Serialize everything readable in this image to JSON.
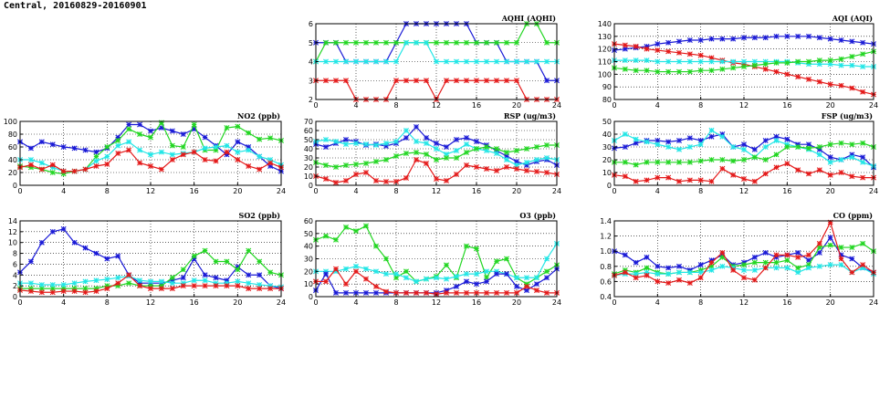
{
  "page": {
    "title": "Central, 20160829-20160901"
  },
  "colors": {
    "blue": "#1a1ad6",
    "red": "#e41a1a",
    "green": "#22d622",
    "cyan": "#22e6e6",
    "grid": "#000000"
  },
  "chart_data": [
    {
      "id": "aqhi",
      "type": "line",
      "title": "AQHI (AQHI)",
      "xlim": [
        0,
        24
      ],
      "xticks": [
        0,
        4,
        8,
        12,
        16,
        20,
        24
      ],
      "ylim": [
        2,
        6
      ],
      "yticks": [
        2,
        3,
        4,
        5,
        6
      ],
      "series": [
        {
          "color": "blue",
          "values": [
            5,
            5,
            5,
            4,
            4,
            4,
            4,
            4,
            5,
            6,
            6,
            6,
            6,
            6,
            6,
            6,
            5,
            5,
            5,
            4,
            4,
            4,
            4,
            3,
            3
          ]
        },
        {
          "color": "green",
          "values": [
            4,
            5,
            5,
            5,
            5,
            5,
            5,
            5,
            5,
            5,
            5,
            5,
            5,
            5,
            5,
            5,
            5,
            5,
            5,
            5,
            5,
            6,
            6,
            5,
            5
          ]
        },
        {
          "color": "cyan",
          "values": [
            4,
            4,
            4,
            4,
            4,
            4,
            4,
            4,
            4,
            5,
            5,
            5,
            4,
            4,
            4,
            4,
            4,
            4,
            4,
            4,
            4,
            4,
            4,
            4,
            4
          ]
        },
        {
          "color": "red",
          "values": [
            3,
            3,
            3,
            3,
            2,
            2,
            2,
            2,
            3,
            3,
            3,
            3,
            2,
            3,
            3,
            3,
            3,
            3,
            3,
            3,
            3,
            2,
            2,
            2,
            2
          ]
        }
      ]
    },
    {
      "id": "aqi",
      "type": "line",
      "title": "AQI (AQI)",
      "xlim": [
        0,
        24
      ],
      "xticks": [
        0,
        4,
        8,
        12,
        16,
        20,
        24
      ],
      "ylim": [
        80,
        140
      ],
      "yticks": [
        80,
        90,
        100,
        110,
        120,
        130,
        140
      ],
      "series": [
        {
          "color": "blue",
          "values": [
            119,
            120,
            121,
            122,
            124,
            125,
            126,
            127,
            127,
            128,
            128,
            128,
            129,
            129,
            129,
            130,
            130,
            130,
            130,
            129,
            128,
            127,
            126,
            125,
            124
          ]
        },
        {
          "color": "red",
          "values": [
            124,
            123,
            122,
            120,
            119,
            118,
            117,
            116,
            115,
            113,
            111,
            109,
            108,
            106,
            104,
            102,
            100,
            98,
            96,
            94,
            92,
            91,
            89,
            86,
            84
          ]
        },
        {
          "color": "cyan",
          "values": [
            111,
            111,
            111,
            111,
            110,
            110,
            110,
            110,
            110,
            110,
            110,
            110,
            110,
            110,
            110,
            110,
            110,
            109,
            108,
            108,
            108,
            107,
            107,
            106,
            106
          ]
        },
        {
          "color": "green",
          "values": [
            105,
            104,
            103,
            103,
            102,
            102,
            102,
            102,
            103,
            103,
            104,
            105,
            106,
            107,
            108,
            109,
            109,
            110,
            110,
            111,
            111,
            112,
            114,
            116,
            118
          ]
        }
      ]
    },
    {
      "id": "no2",
      "type": "line",
      "title": "NO2 (ppb)",
      "xlim": [
        0,
        24
      ],
      "xticks": [
        0,
        4,
        8,
        12,
        16,
        20,
        24
      ],
      "ylim": [
        0,
        100
      ],
      "yticks": [
        0,
        20,
        40,
        60,
        80,
        100
      ],
      "series": [
        {
          "color": "blue",
          "values": [
            68,
            58,
            68,
            64,
            60,
            58,
            55,
            52,
            58,
            75,
            95,
            95,
            85,
            90,
            85,
            80,
            88,
            75,
            62,
            48,
            68,
            60,
            45,
            30,
            22
          ]
        },
        {
          "color": "green",
          "values": [
            30,
            28,
            25,
            20,
            18,
            22,
            25,
            45,
            60,
            70,
            88,
            80,
            75,
            98,
            62,
            60,
            95,
            55,
            55,
            90,
            92,
            82,
            72,
            74,
            70
          ]
        },
        {
          "color": "cyan",
          "values": [
            40,
            40,
            35,
            28,
            22,
            22,
            25,
            38,
            45,
            62,
            68,
            55,
            48,
            52,
            48,
            50,
            52,
            58,
            60,
            62,
            52,
            55,
            45,
            40,
            32
          ]
        },
        {
          "color": "red",
          "values": [
            28,
            32,
            25,
            32,
            22,
            22,
            25,
            30,
            33,
            50,
            55,
            35,
            30,
            25,
            40,
            48,
            52,
            40,
            38,
            52,
            40,
            30,
            25,
            35,
            28
          ]
        }
      ]
    },
    {
      "id": "rsp",
      "type": "line",
      "title": "RSP (ug/m3)",
      "xlim": [
        0,
        24
      ],
      "xticks": [
        0,
        4,
        8,
        12,
        16,
        20,
        24
      ],
      "ylim": [
        0,
        70
      ],
      "yticks": [
        0,
        10,
        20,
        30,
        40,
        50,
        60,
        70
      ],
      "series": [
        {
          "color": "blue",
          "values": [
            45,
            42,
            46,
            50,
            48,
            44,
            45,
            43,
            46,
            52,
            64,
            52,
            46,
            42,
            50,
            52,
            48,
            44,
            38,
            32,
            26,
            22,
            26,
            28,
            22
          ]
        },
        {
          "color": "cyan",
          "values": [
            48,
            50,
            48,
            45,
            46,
            45,
            44,
            46,
            48,
            60,
            48,
            46,
            40,
            34,
            38,
            45,
            40,
            38,
            35,
            28,
            22,
            25,
            28,
            30,
            28
          ]
        },
        {
          "color": "green",
          "values": [
            25,
            22,
            20,
            22,
            23,
            24,
            26,
            28,
            32,
            35,
            36,
            34,
            28,
            30,
            30,
            36,
            40,
            42,
            40,
            36,
            38,
            40,
            42,
            44,
            44
          ]
        },
        {
          "color": "red",
          "values": [
            10,
            7,
            3,
            5,
            12,
            14,
            5,
            4,
            4,
            8,
            28,
            24,
            7,
            5,
            12,
            22,
            20,
            18,
            16,
            20,
            18,
            16,
            15,
            14,
            12
          ]
        }
      ]
    },
    {
      "id": "fsp",
      "type": "line",
      "title": "FSP (ug/m3)",
      "xlim": [
        0,
        24
      ],
      "xticks": [
        0,
        4,
        8,
        12,
        16,
        20,
        24
      ],
      "ylim": [
        0,
        50
      ],
      "yticks": [
        0,
        10,
        20,
        30,
        40,
        50
      ],
      "series": [
        {
          "color": "blue",
          "values": [
            29,
            30,
            33,
            35,
            35,
            34,
            35,
            37,
            35,
            38,
            40,
            30,
            32,
            28,
            35,
            38,
            36,
            32,
            32,
            28,
            22,
            20,
            24,
            22,
            14
          ]
        },
        {
          "color": "cyan",
          "values": [
            35,
            40,
            36,
            34,
            32,
            30,
            28,
            30,
            32,
            43,
            38,
            30,
            28,
            22,
            30,
            35,
            32,
            30,
            28,
            24,
            18,
            20,
            22,
            18,
            15
          ]
        },
        {
          "color": "green",
          "values": [
            18,
            18,
            16,
            18,
            18,
            18,
            18,
            18,
            19,
            20,
            20,
            19,
            20,
            22,
            20,
            24,
            30,
            30,
            29,
            30,
            32,
            33,
            32,
            33,
            30
          ]
        },
        {
          "color": "red",
          "values": [
            8,
            7,
            3,
            4,
            6,
            6,
            3,
            4,
            4,
            3,
            13,
            8,
            5,
            3,
            9,
            14,
            17,
            12,
            9,
            12,
            8,
            10,
            7,
            6,
            6
          ]
        }
      ]
    },
    {
      "id": "so2",
      "type": "line",
      "title": "SO2 (ppb)",
      "xlim": [
        0,
        24
      ],
      "xticks": [
        0,
        4,
        8,
        12,
        16,
        20,
        24
      ],
      "ylim": [
        0,
        14
      ],
      "yticks": [
        0,
        2,
        4,
        6,
        8,
        10,
        12,
        14
      ],
      "series": [
        {
          "color": "blue",
          "values": [
            4.5,
            6.5,
            10,
            12,
            12.5,
            10,
            9,
            8,
            7,
            7.5,
            4,
            2.5,
            2.5,
            2.5,
            3,
            3.5,
            7,
            4,
            3.5,
            3,
            5.5,
            4,
            4,
            2,
            1.5
          ]
        },
        {
          "color": "green",
          "values": [
            1.5,
            1.5,
            1.5,
            1.5,
            1.5,
            1.5,
            1.5,
            1.5,
            2,
            2,
            2.5,
            2,
            2,
            2,
            3.5,
            5,
            7.5,
            8.5,
            6.5,
            6.5,
            5,
            8.5,
            6.5,
            4.5,
            4
          ]
        },
        {
          "color": "cyan",
          "values": [
            2.5,
            2.5,
            2.2,
            2.2,
            2.2,
            2.5,
            2.8,
            3,
            3.2,
            3.5,
            3.8,
            3,
            2.8,
            2.8,
            2.5,
            2.5,
            3,
            3,
            2.5,
            2.5,
            2.8,
            2.5,
            2.2,
            2,
            1.8
          ]
        },
        {
          "color": "red",
          "values": [
            1.2,
            1,
            0.8,
            0.8,
            1,
            1,
            0.8,
            1,
            1.5,
            2.5,
            4,
            2,
            1.5,
            1.5,
            1.5,
            2,
            2,
            2,
            2,
            2,
            2,
            1.5,
            1.5,
            1.5,
            1.5
          ]
        }
      ]
    },
    {
      "id": "o3",
      "type": "line",
      "title": "O3 (ppb)",
      "xlim": [
        0,
        24
      ],
      "xticks": [
        0,
        4,
        8,
        12,
        16,
        20,
        24
      ],
      "ylim": [
        0,
        60
      ],
      "yticks": [
        0,
        10,
        20,
        30,
        40,
        50,
        60
      ],
      "series": [
        {
          "color": "green",
          "values": [
            45,
            48,
            45,
            55,
            52,
            56,
            40,
            30,
            15,
            20,
            12,
            14,
            16,
            25,
            15,
            40,
            38,
            15,
            28,
            30,
            15,
            10,
            15,
            20,
            25
          ]
        },
        {
          "color": "cyan",
          "values": [
            20,
            20,
            20,
            22,
            24,
            22,
            20,
            18,
            18,
            15,
            12,
            14,
            15,
            14,
            16,
            18,
            18,
            20,
            20,
            18,
            15,
            15,
            15,
            30,
            42
          ]
        },
        {
          "color": "blue",
          "values": [
            5,
            18,
            3,
            3,
            3,
            3,
            3,
            3,
            3,
            3,
            3,
            3,
            3,
            5,
            8,
            12,
            10,
            12,
            18,
            18,
            8,
            5,
            10,
            15,
            22
          ]
        },
        {
          "color": "red",
          "values": [
            12,
            12,
            22,
            10,
            20,
            14,
            8,
            4,
            3,
            3,
            3,
            3,
            2,
            3,
            3,
            3,
            3,
            3,
            3,
            3,
            3,
            8,
            5,
            3,
            3
          ]
        }
      ]
    },
    {
      "id": "co",
      "type": "line",
      "title": "CO (ppm)",
      "xlim": [
        0,
        24
      ],
      "xticks": [
        0,
        4,
        8,
        12,
        16,
        20,
        24
      ],
      "ylim": [
        0.4,
        1.4
      ],
      "yticks": [
        0.4,
        0.6,
        0.8,
        1.0,
        1.2,
        1.4
      ],
      "series": [
        {
          "color": "blue",
          "values": [
            1.0,
            0.95,
            0.85,
            0.92,
            0.8,
            0.78,
            0.8,
            0.75,
            0.82,
            0.88,
            0.95,
            0.82,
            0.85,
            0.92,
            0.98,
            0.92,
            0.95,
            0.98,
            0.88,
            0.98,
            1.18,
            0.95,
            0.9,
            0.78,
            0.72
          ]
        },
        {
          "color": "green",
          "values": [
            0.7,
            0.75,
            0.72,
            0.78,
            0.72,
            0.7,
            0.72,
            0.72,
            0.75,
            0.8,
            0.92,
            0.8,
            0.82,
            0.85,
            0.85,
            0.85,
            0.88,
            0.78,
            0.82,
            1.05,
            1.08,
            1.05,
            1.05,
            1.1,
            1.0
          ]
        },
        {
          "color": "cyan",
          "values": [
            0.68,
            0.7,
            0.7,
            0.72,
            0.7,
            0.7,
            0.72,
            0.72,
            0.72,
            0.75,
            0.8,
            0.78,
            0.75,
            0.75,
            0.78,
            0.78,
            0.78,
            0.72,
            0.78,
            0.8,
            0.82,
            0.82,
            0.72,
            0.78,
            0.7
          ]
        },
        {
          "color": "red",
          "values": [
            0.68,
            0.72,
            0.65,
            0.68,
            0.6,
            0.58,
            0.62,
            0.58,
            0.65,
            0.85,
            0.98,
            0.75,
            0.65,
            0.62,
            0.78,
            0.95,
            0.95,
            0.92,
            0.95,
            1.1,
            1.38,
            0.9,
            0.72,
            0.82,
            0.72
          ]
        }
      ]
    }
  ]
}
